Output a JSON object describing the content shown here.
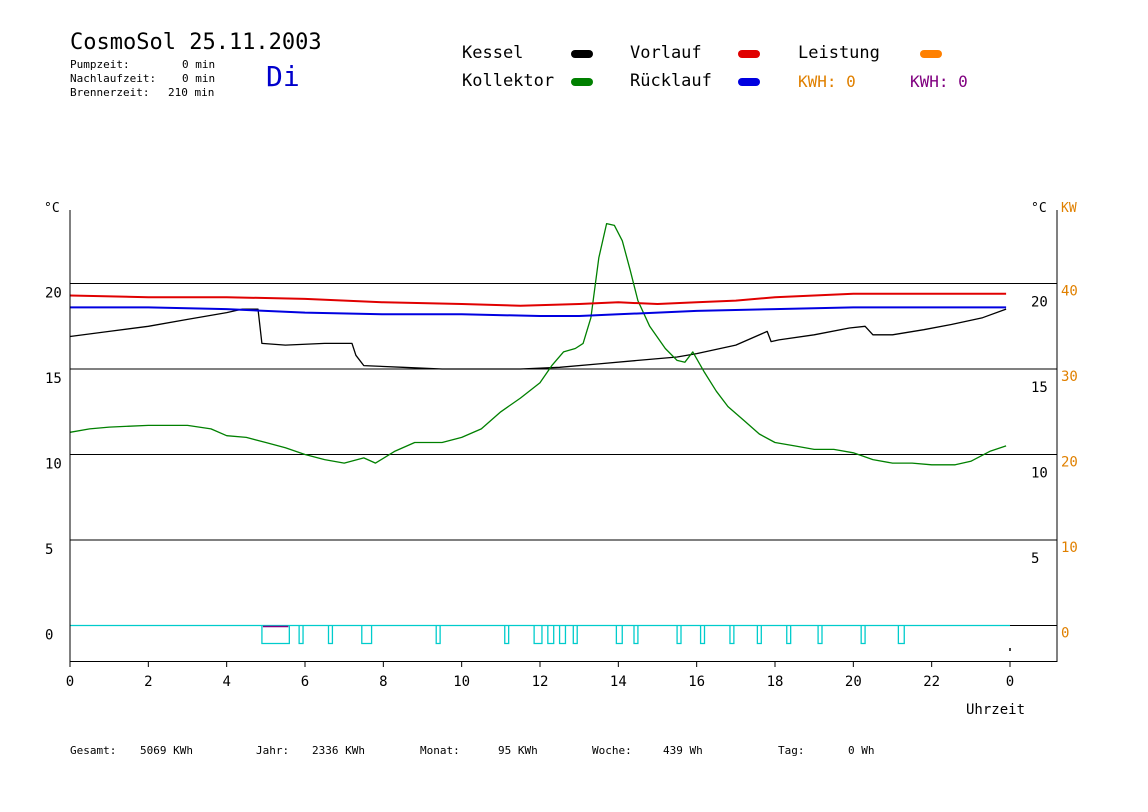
{
  "header": {
    "title": "CosmoSol 25.11.2003",
    "day": "Di",
    "stats": [
      {
        "label": "Pumpzeit:",
        "value": "0 min"
      },
      {
        "label": "Nachlaufzeit:",
        "value": "0 min"
      },
      {
        "label": "Brennerzeit:",
        "value": "210 min"
      }
    ]
  },
  "legend": [
    {
      "name": "Kessel",
      "color": "#000000"
    },
    {
      "name": "Kollektor",
      "color": "#008000"
    },
    {
      "name": "Vorlauf",
      "color": "#e00000"
    },
    {
      "name": "Rücklauf",
      "color": "#0000e0"
    },
    {
      "name": "Leistung",
      "color": "#ff8000"
    }
  ],
  "kwh": [
    {
      "text": "KWH: 0",
      "color": "#e08000"
    },
    {
      "text": "KWH: 0",
      "color": "#800080"
    }
  ],
  "colors": {
    "axis": "#000000",
    "pulse": "#00cccc",
    "pulse_fill": "#800080",
    "kw_axis": "#e08000"
  },
  "footer": [
    {
      "label": "Gesamt:",
      "value": "5069 KWh"
    },
    {
      "label": "Jahr:",
      "value": "2336 KWh"
    },
    {
      "label": "Monat:",
      "value": "95 KWh"
    },
    {
      "label": "Woche:",
      "value": "439 Wh"
    },
    {
      "label": "Tag:",
      "value": "0 Wh"
    }
  ],
  "chart_data": {
    "type": "line",
    "xlabel": "Uhrzeit",
    "x_ticks": [
      {
        "hour": 0,
        "label": "0"
      },
      {
        "hour": 2,
        "label": "2"
      },
      {
        "hour": 4,
        "label": "4"
      },
      {
        "hour": 6,
        "label": "6"
      },
      {
        "hour": 8,
        "label": "8"
      },
      {
        "hour": 10,
        "label": "10"
      },
      {
        "hour": 12,
        "label": "12"
      },
      {
        "hour": 14,
        "label": "14"
      },
      {
        "hour": 16,
        "label": "16"
      },
      {
        "hour": 18,
        "label": "18"
      },
      {
        "hour": 20,
        "label": "20"
      },
      {
        "hour": 22,
        "label": "22"
      },
      {
        "hour": 24,
        "label": "0"
      }
    ],
    "xlim": [
      0,
      24
    ],
    "left_unit": "°C",
    "right_unit": "°C",
    "right_unit2": "KW",
    "left_ticks": [
      "20",
      "15",
      "10",
      "5",
      "0"
    ],
    "left_tick_values": [
      20,
      15,
      10,
      5,
      0
    ],
    "right_ticks": [
      "20",
      "15",
      "10",
      "5"
    ],
    "right_tick_values": [
      20,
      15,
      10,
      5
    ],
    "kw_ticks": [
      "40",
      "30",
      "20",
      "10",
      "0"
    ],
    "kw_tick_values": [
      40,
      30,
      20,
      10,
      0
    ],
    "ylim": [
      -2,
      25
    ],
    "grid": [
      20,
      15,
      10,
      5,
      0
    ],
    "series": [
      {
        "name": "Kessel",
        "color": "#000000",
        "x": [
          0,
          1,
          2,
          3,
          4,
          4.4,
          4.8,
          4.9,
          5.5,
          6.5,
          7.2,
          7.3,
          7.5,
          8.5,
          9.5,
          10.5,
          11.5,
          12.5,
          13.5,
          14.5,
          15.5,
          16,
          17,
          17.8,
          17.9,
          18.1,
          19,
          19.9,
          20.3,
          20.5,
          21,
          21.8,
          22.5,
          23.3,
          23.9
        ],
        "y": [
          16.9,
          17.2,
          17.5,
          17.9,
          18.3,
          18.5,
          18.5,
          16.5,
          16.4,
          16.5,
          16.5,
          15.8,
          15.2,
          15.1,
          15.0,
          15.0,
          15.0,
          15.1,
          15.3,
          15.5,
          15.7,
          15.9,
          16.4,
          17.2,
          16.6,
          16.7,
          17.0,
          17.4,
          17.5,
          17.0,
          17.0,
          17.3,
          17.6,
          18.0,
          18.5
        ]
      },
      {
        "name": "Kollektor",
        "color": "#008000",
        "x": [
          0,
          0.5,
          1,
          2,
          3,
          3.6,
          4,
          4.5,
          5,
          5.5,
          6,
          6.5,
          7,
          7.5,
          7.8,
          8.3,
          8.8,
          9.5,
          10,
          10.5,
          11,
          11.5,
          12,
          12.3,
          12.6,
          12.9,
          13.1,
          13.3,
          13.5,
          13.7,
          13.9,
          14.1,
          14.3,
          14.5,
          14.8,
          15.2,
          15.5,
          15.7,
          15.9,
          16.2,
          16.5,
          16.8,
          17.2,
          17.6,
          18,
          18.5,
          19,
          19.5,
          20,
          20.5,
          21,
          21.5,
          22,
          22.6,
          23,
          23.5,
          23.9
        ],
        "y": [
          11.3,
          11.5,
          11.6,
          11.7,
          11.7,
          11.5,
          11.1,
          11.0,
          10.7,
          10.4,
          10.0,
          9.7,
          9.5,
          9.8,
          9.5,
          10.2,
          10.7,
          10.7,
          11.0,
          11.5,
          12.5,
          13.3,
          14.2,
          15.2,
          16.0,
          16.2,
          16.5,
          18.0,
          21.5,
          23.5,
          23.4,
          22.5,
          20.8,
          19.0,
          17.5,
          16.2,
          15.5,
          15.4,
          16.0,
          14.8,
          13.7,
          12.8,
          12.0,
          11.2,
          10.7,
          10.5,
          10.3,
          10.3,
          10.1,
          9.7,
          9.5,
          9.5,
          9.4,
          9.4,
          9.6,
          10.2,
          10.5
        ]
      },
      {
        "name": "Vorlauf",
        "color": "#e00000",
        "x": [
          0,
          2,
          4,
          6,
          8,
          10,
          11.5,
          13,
          14,
          15,
          16,
          17,
          18,
          19,
          20,
          22,
          23.9
        ],
        "y": [
          19.3,
          19.2,
          19.2,
          19.1,
          18.9,
          18.8,
          18.7,
          18.8,
          18.9,
          18.8,
          18.9,
          19.0,
          19.2,
          19.3,
          19.4,
          19.4,
          19.4
        ]
      },
      {
        "name": "Rücklauf",
        "color": "#0000e0",
        "x": [
          0,
          2,
          4,
          6,
          8,
          10,
          12,
          13,
          14,
          15,
          16,
          18,
          20,
          22,
          23.9
        ],
        "y": [
          18.6,
          18.6,
          18.5,
          18.3,
          18.2,
          18.2,
          18.1,
          18.1,
          18.2,
          18.3,
          18.4,
          18.5,
          18.6,
          18.6,
          18.6
        ]
      }
    ],
    "pulses": [
      [
        4.9,
        5.6
      ],
      [
        5.85,
        5.95
      ],
      [
        6.6,
        6.7
      ],
      [
        7.45,
        7.7
      ],
      [
        9.35,
        9.45
      ],
      [
        11.1,
        11.2
      ],
      [
        11.85,
        12.05
      ],
      [
        12.2,
        12.35
      ],
      [
        12.5,
        12.65
      ],
      [
        12.85,
        12.95
      ],
      [
        13.95,
        14.1
      ],
      [
        14.4,
        14.5
      ],
      [
        15.5,
        15.6
      ],
      [
        16.1,
        16.2
      ],
      [
        16.85,
        16.95
      ],
      [
        17.55,
        17.65
      ],
      [
        18.3,
        18.4
      ],
      [
        19.1,
        19.2
      ],
      [
        20.2,
        20.3
      ],
      [
        21.15,
        21.3
      ]
    ]
  }
}
